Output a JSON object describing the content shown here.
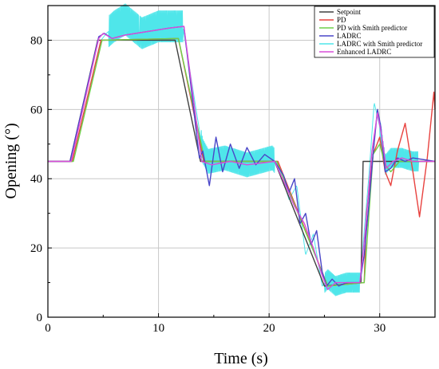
{
  "chart_data": {
    "type": "line",
    "xlabel": "Time (s)",
    "ylabel": "Opening (°)",
    "xlim": [
      0,
      35
    ],
    "ylim": [
      0,
      90
    ],
    "x_ticks": [
      "0",
      "10",
      "20",
      "30"
    ],
    "y_ticks": [
      "0",
      "20",
      "40",
      "60",
      "80"
    ],
    "grid": true,
    "legend_position": "top-right",
    "series": [
      {
        "name": "Setpoint",
        "color": "#404040",
        "points": [
          [
            0,
            45
          ],
          [
            2,
            45
          ],
          [
            4.5,
            80
          ],
          [
            11.5,
            80
          ],
          [
            13.8,
            45
          ],
          [
            20.5,
            45
          ],
          [
            25,
            9
          ],
          [
            28.3,
            10
          ],
          [
            28.5,
            45
          ],
          [
            35,
            45
          ]
        ]
      },
      {
        "name": "PD",
        "color": "#e8423f",
        "points": [
          [
            0,
            45
          ],
          [
            2.2,
            45
          ],
          [
            4.8,
            80
          ],
          [
            11.8,
            80.5
          ],
          [
            14.1,
            45
          ],
          [
            20.8,
            45
          ],
          [
            25.3,
            9
          ],
          [
            28.6,
            10
          ],
          [
            28.8,
            30
          ],
          [
            29.4,
            47
          ],
          [
            30,
            52
          ],
          [
            30.5,
            42
          ],
          [
            31,
            38
          ],
          [
            31.6,
            48
          ],
          [
            32.3,
            56
          ],
          [
            33,
            42
          ],
          [
            33.6,
            29
          ],
          [
            34.3,
            46
          ],
          [
            34.9,
            65
          ],
          [
            35,
            60
          ]
        ]
      },
      {
        "name": "PD with Smith predictor",
        "color": "#6ecf4a",
        "points": [
          [
            0,
            45
          ],
          [
            2.3,
            45
          ],
          [
            4.9,
            80
          ],
          [
            11.8,
            80.5
          ],
          [
            14.2,
            45
          ],
          [
            20.7,
            45
          ],
          [
            25.3,
            9
          ],
          [
            28.6,
            10
          ],
          [
            29.4,
            47
          ],
          [
            30,
            50
          ],
          [
            30.5,
            44
          ],
          [
            31,
            42
          ],
          [
            31.8,
            45
          ],
          [
            32.5,
            45
          ],
          [
            35,
            45
          ]
        ]
      },
      {
        "name": "LADRC",
        "color": "#4a46c8",
        "points": [
          [
            0,
            45
          ],
          [
            2,
            45
          ],
          [
            4.6,
            81
          ],
          [
            5.1,
            82
          ],
          [
            5.8,
            80.5
          ],
          [
            7,
            81.5
          ],
          [
            9,
            82.5
          ],
          [
            11,
            83.5
          ],
          [
            12.3,
            84
          ],
          [
            13.7,
            46
          ],
          [
            14,
            48
          ],
          [
            14.6,
            38
          ],
          [
            15.2,
            52
          ],
          [
            15.8,
            42
          ],
          [
            16.5,
            50
          ],
          [
            17.3,
            43
          ],
          [
            18,
            49
          ],
          [
            18.8,
            44
          ],
          [
            19.6,
            47
          ],
          [
            20.5,
            45
          ],
          [
            21.3,
            41
          ],
          [
            21.8,
            36
          ],
          [
            22.3,
            40
          ],
          [
            22.8,
            27
          ],
          [
            23.3,
            30
          ],
          [
            23.8,
            21
          ],
          [
            24.3,
            25
          ],
          [
            24.8,
            13
          ],
          [
            25.2,
            9
          ],
          [
            25.7,
            11
          ],
          [
            26.3,
            9
          ],
          [
            27,
            10
          ],
          [
            28.2,
            10
          ],
          [
            28.6,
            18
          ],
          [
            29,
            32
          ],
          [
            29.4,
            47
          ],
          [
            29.8,
            60
          ],
          [
            30.1,
            55
          ],
          [
            30.5,
            42
          ],
          [
            31,
            43
          ],
          [
            31.6,
            46
          ],
          [
            32.3,
            45
          ],
          [
            33,
            46
          ],
          [
            35,
            45
          ]
        ]
      },
      {
        "name": "LADRC with Smith predictor",
        "color": "#4fe6ea",
        "points": [
          [
            0,
            45
          ],
          [
            2.2,
            45
          ],
          [
            4.8,
            80
          ],
          [
            5.3,
            82
          ],
          [
            6,
            84
          ],
          [
            7,
            86
          ],
          [
            8.5,
            82
          ],
          [
            10,
            84
          ],
          [
            12.2,
            84
          ],
          [
            14,
            48
          ],
          [
            14.5,
            45
          ],
          [
            16,
            46
          ],
          [
            18,
            44
          ],
          [
            20.3,
            46
          ],
          [
            20.8,
            44
          ],
          [
            21.8,
            34
          ],
          [
            22.5,
            38
          ],
          [
            23.3,
            18
          ],
          [
            24,
            24
          ],
          [
            24.8,
            9
          ],
          [
            25.3,
            11
          ],
          [
            26,
            9
          ],
          [
            27,
            10
          ],
          [
            28.2,
            10
          ],
          [
            29,
            40
          ],
          [
            29.5,
            62
          ],
          [
            30,
            55
          ],
          [
            30.5,
            44
          ],
          [
            31,
            46
          ],
          [
            32,
            46
          ],
          [
            33,
            45
          ],
          [
            35,
            45
          ]
        ],
        "oscillation_bands": [
          [
            5.5,
            12.2,
            4.5
          ],
          [
            13.8,
            20.5,
            3.5
          ],
          [
            25,
            28.2,
            2.8
          ],
          [
            30,
            33.5,
            2.8
          ]
        ]
      },
      {
        "name": "Enhanced LADRC",
        "color": "#d94ed9",
        "points": [
          [
            0,
            45
          ],
          [
            2.1,
            45
          ],
          [
            4.6,
            80.5
          ],
          [
            5,
            82
          ],
          [
            5.8,
            80.5
          ],
          [
            7,
            81.5
          ],
          [
            9,
            82.5
          ],
          [
            11,
            83.5
          ],
          [
            12.3,
            84
          ],
          [
            13.9,
            45
          ],
          [
            14.8,
            44
          ],
          [
            16.5,
            45
          ],
          [
            18,
            44
          ],
          [
            20.5,
            45
          ],
          [
            21.5,
            38
          ],
          [
            22.3,
            32
          ],
          [
            23.2,
            27
          ],
          [
            24,
            20
          ],
          [
            24.8,
            12
          ],
          [
            25.3,
            8
          ],
          [
            26,
            10
          ],
          [
            28.2,
            10
          ],
          [
            28.7,
            25
          ],
          [
            29.3,
            48
          ],
          [
            29.8,
            59
          ],
          [
            30.2,
            52
          ],
          [
            30.6,
            43
          ],
          [
            31.2,
            45
          ],
          [
            32,
            46
          ],
          [
            33,
            45
          ],
          [
            35,
            45
          ]
        ]
      }
    ]
  }
}
